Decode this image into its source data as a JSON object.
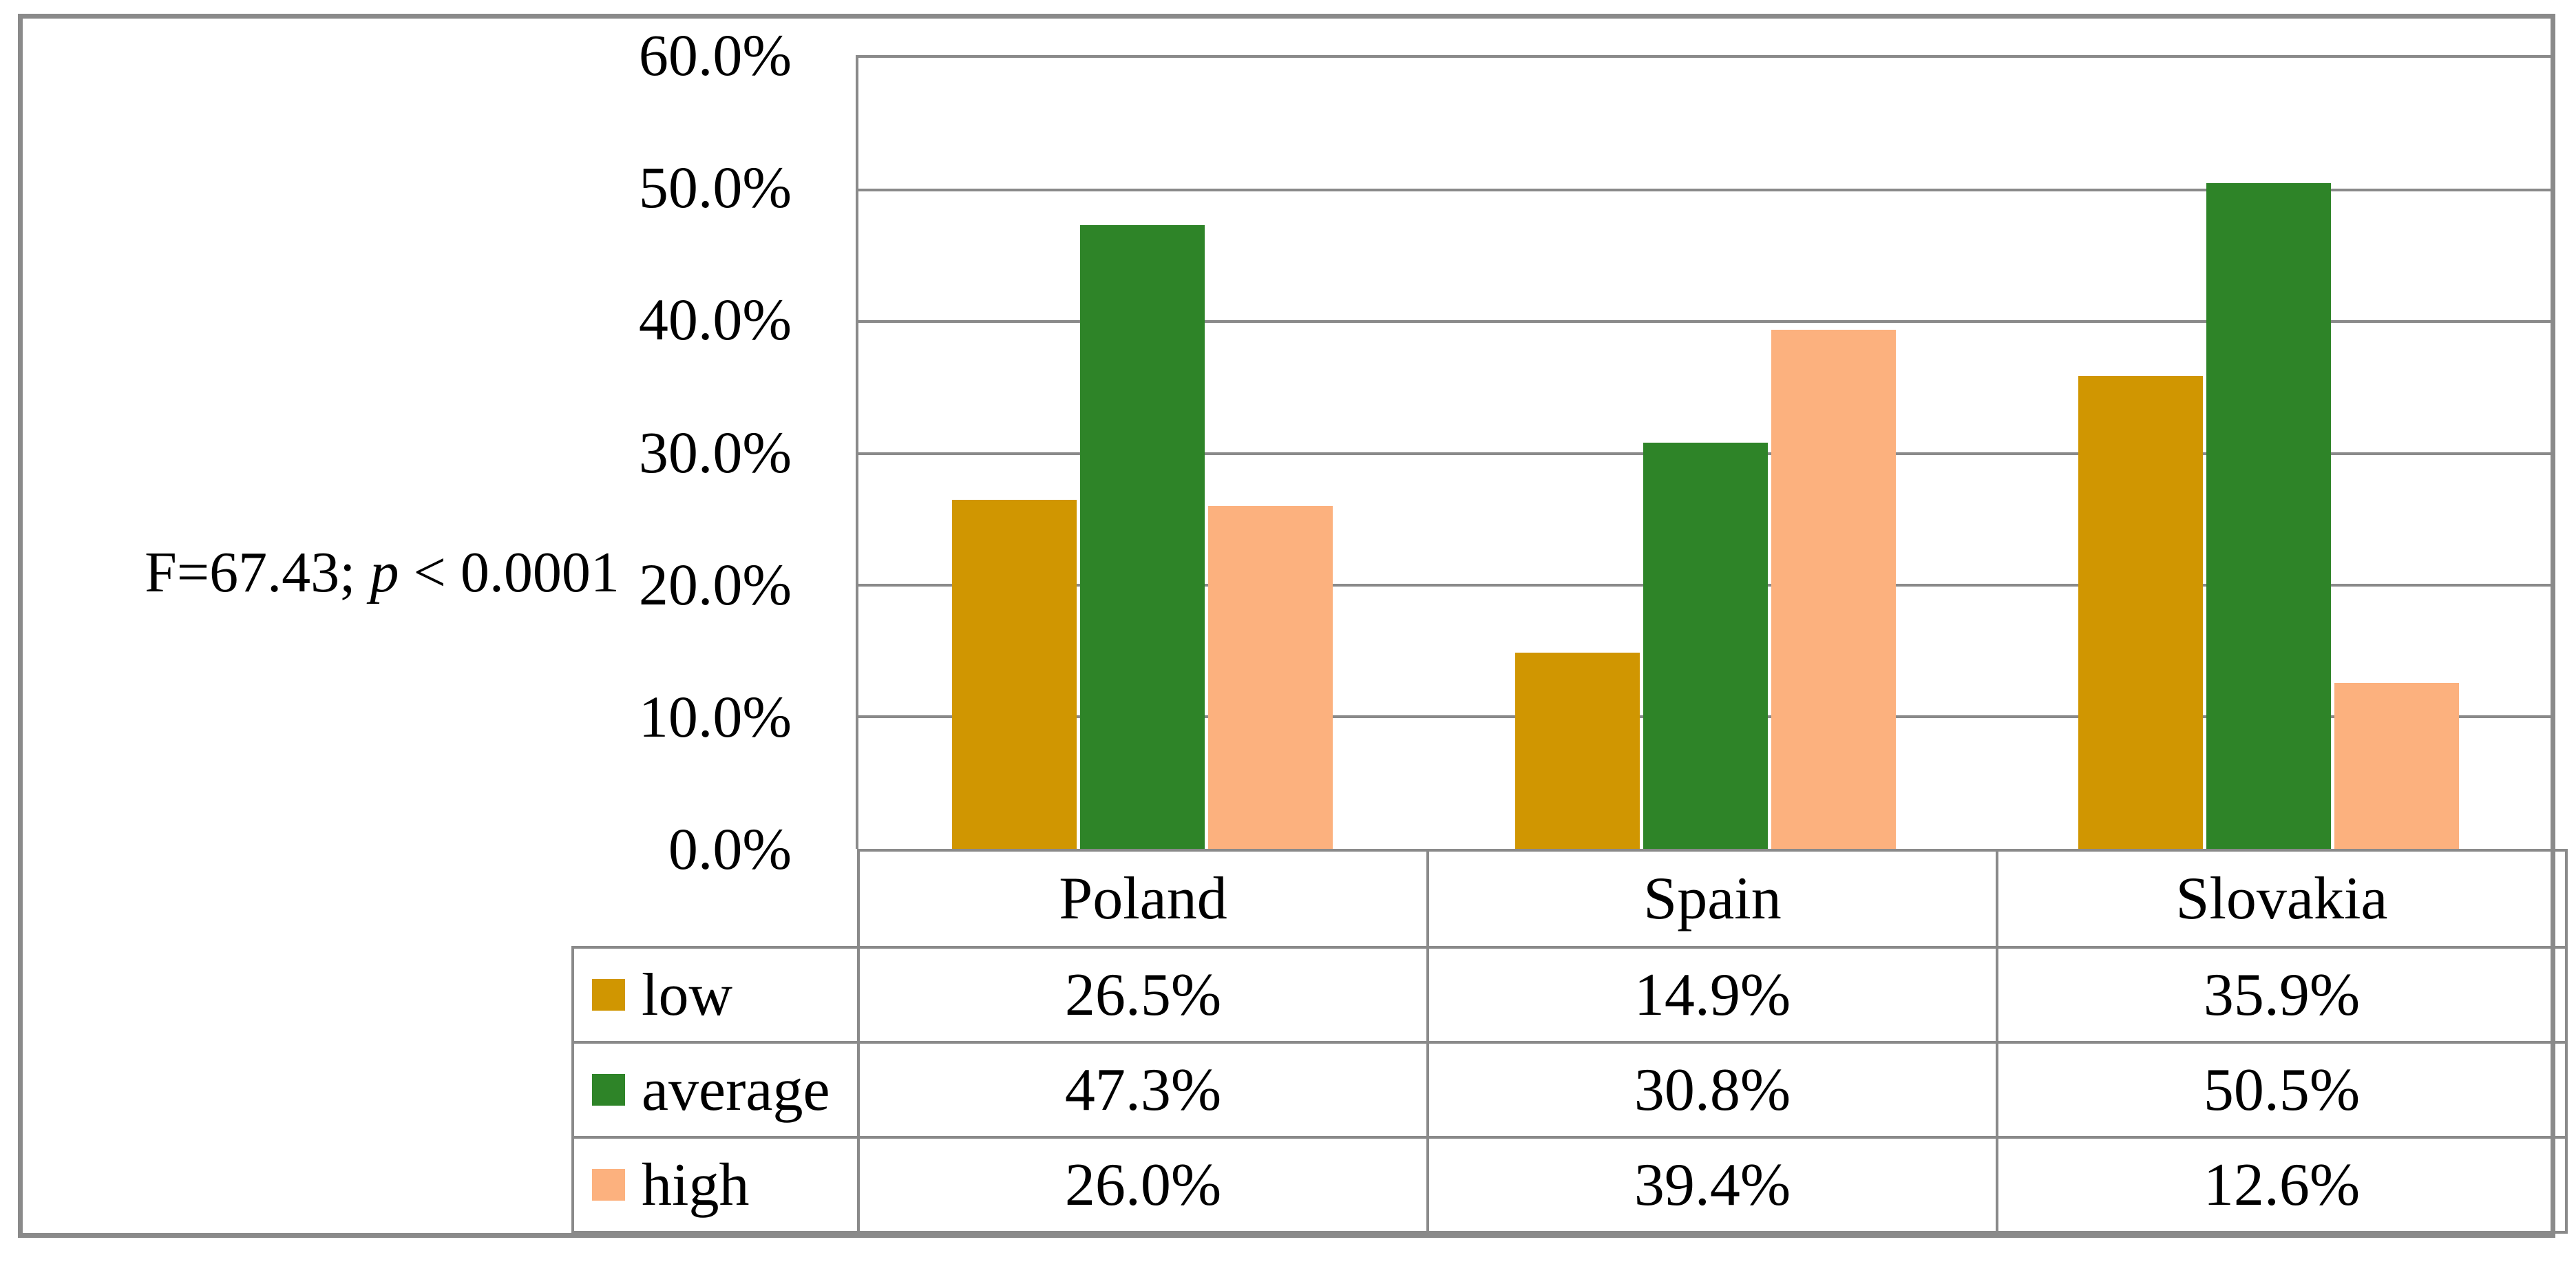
{
  "figure": {
    "background": "#FFFFFF",
    "border_color": "#8A8A8A",
    "annotation": {
      "full": "F=67.43; p < 0.0001",
      "f_part": "F=67.43;",
      "p_var": "p",
      "p_rest": "< 0.0001"
    }
  },
  "chart_data": {
    "type": "bar",
    "title": "",
    "xlabel": "",
    "ylabel": "",
    "categories": [
      "Poland",
      "Spain",
      "Slovakia"
    ],
    "series": [
      {
        "name": "low",
        "color": "#D09601",
        "values": [
          26.5,
          14.9,
          35.9
        ]
      },
      {
        "name": "average",
        "color": "#2E8428",
        "values": [
          47.3,
          30.8,
          50.5
        ]
      },
      {
        "name": "high",
        "color": "#FCB17E",
        "values": [
          26.0,
          39.4,
          12.6
        ]
      }
    ],
    "y_axis": {
      "min": 0,
      "max": 60,
      "step": 10,
      "format": "percent",
      "tick_labels": [
        "0.0%",
        "10.0%",
        "20.0%",
        "30.0%",
        "40.0%",
        "50.0%",
        "60.0%"
      ]
    },
    "gridlines": true,
    "legend_position": "table-left",
    "annotation": "F=67.43; p < 0.0001",
    "table_values": [
      [
        "26.5%",
        "14.9%",
        "35.9%"
      ],
      [
        "47.3%",
        "30.8%",
        "50.5%"
      ],
      [
        "26.0%",
        "39.4%",
        "12.6%"
      ]
    ]
  }
}
